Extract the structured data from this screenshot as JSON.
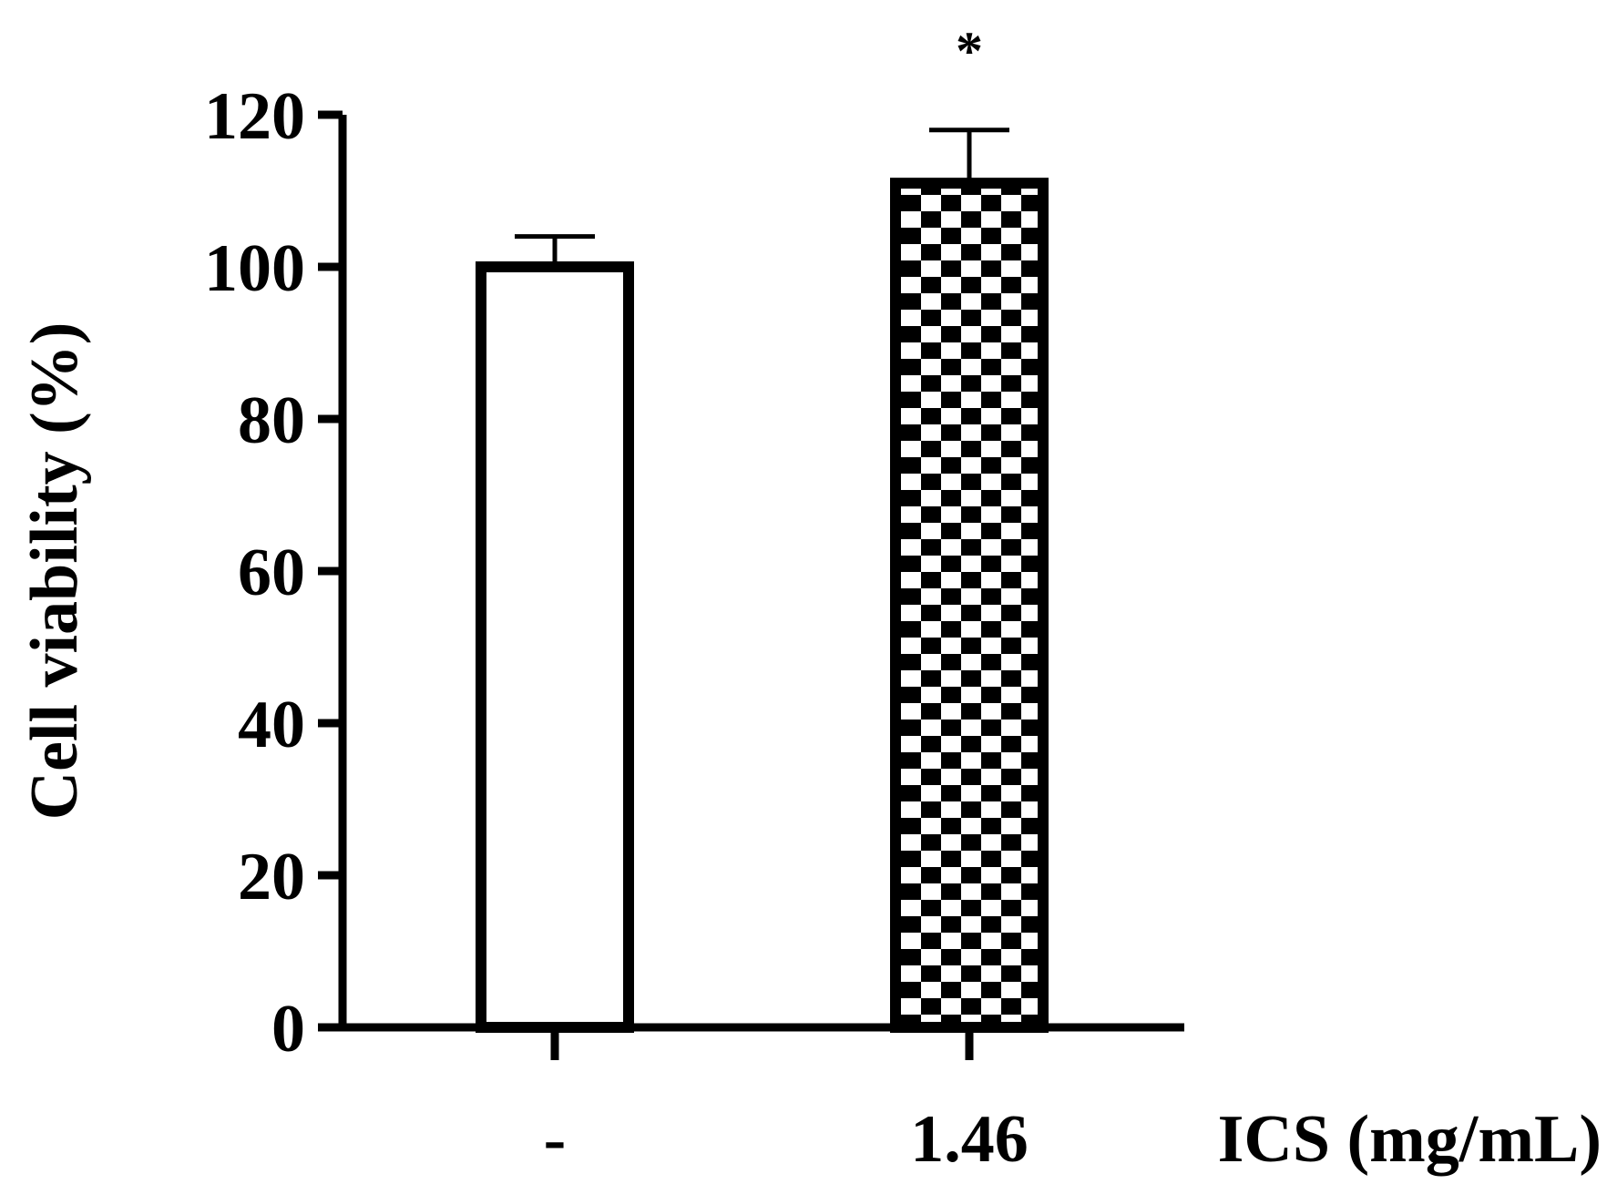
{
  "chart_data": {
    "type": "bar",
    "ylabel": "Cell viability (%)",
    "xlabel": "ICS (mg/mL)",
    "ylim": [
      0,
      120
    ],
    "yticks": [
      0,
      20,
      40,
      60,
      80,
      100,
      120
    ],
    "categories": [
      "-",
      "1.46"
    ],
    "values": [
      100,
      111
    ],
    "errors": [
      4,
      7
    ],
    "fills": [
      "solid-white",
      "checkerboard"
    ],
    "significance": [
      "",
      "*"
    ],
    "grid": false
  },
  "colors": {
    "ink": "#000000",
    "background": "#ffffff"
  }
}
